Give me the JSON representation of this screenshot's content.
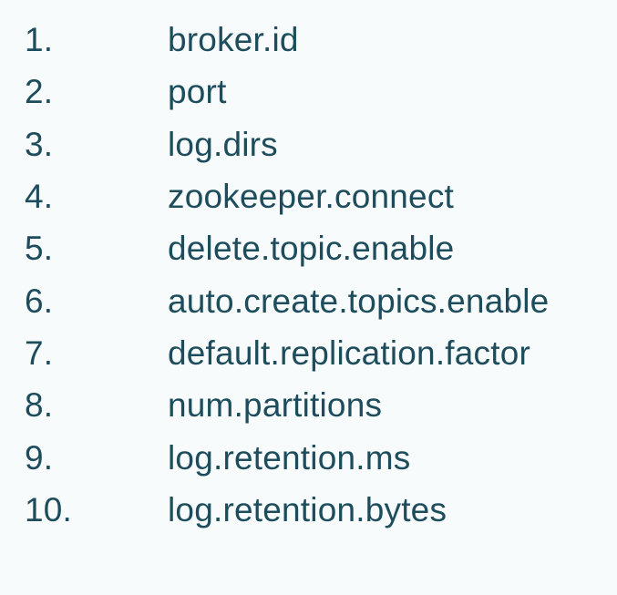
{
  "list": {
    "items": [
      {
        "number": "1.",
        "name": "broker.id"
      },
      {
        "number": "2.",
        "name": "port"
      },
      {
        "number": "3.",
        "name": "log.dirs"
      },
      {
        "number": "4.",
        "name": "zookeeper.connect"
      },
      {
        "number": "5.",
        "name": "delete.topic.enable"
      },
      {
        "number": "6.",
        "name": "auto.create.topics.enable"
      },
      {
        "number": "7.",
        "name": "default.replication.factor"
      },
      {
        "number": "8.",
        "name": "num.partitions"
      },
      {
        "number": "9.",
        "name": "log.retention.ms"
      },
      {
        "number": "10.",
        "name": "log.retention.bytes"
      }
    ]
  },
  "colors": {
    "background": "#f7fbfb",
    "text": "#1d4d5c"
  }
}
